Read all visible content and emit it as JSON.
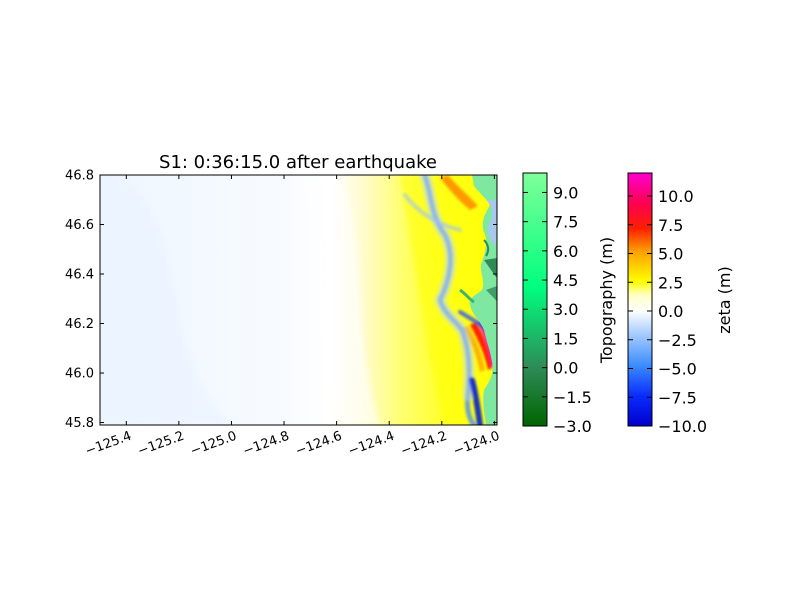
{
  "chart_data": {
    "type": "heatmap",
    "title": "S1: 0:36:15.0 after earthquake",
    "x_ticks": [
      "−125.4",
      "−125.2",
      "−125.0",
      "−124.8",
      "−124.6",
      "−124.4",
      "−124.2",
      "−124.0"
    ],
    "x_tick_values": [
      -125.4,
      -125.2,
      -125.0,
      -124.8,
      -124.6,
      -124.4,
      -124.2,
      -124.0
    ],
    "xlim": [
      -125.5,
      -123.99
    ],
    "y_ticks": [
      "45.8",
      "46.0",
      "46.2",
      "46.4",
      "46.6",
      "46.8"
    ],
    "y_tick_values": [
      45.8,
      46.0,
      46.2,
      46.4,
      46.6,
      46.8
    ],
    "ylim": [
      45.79,
      46.8
    ],
    "topo_colorbar": {
      "label": "Topography (m)",
      "ticks": [
        "−3.0",
        "−1.5",
        "0.0",
        "1.5",
        "3.0",
        "4.5",
        "6.0",
        "7.5",
        "9.0"
      ],
      "tick_values": [
        -3.0,
        -1.5,
        0.0,
        1.5,
        3.0,
        4.5,
        6.0,
        7.5,
        9.0
      ],
      "range": [
        -3.0,
        10.0
      ],
      "colors": [
        "#006400",
        "#3cb371",
        "#00ff7f",
        "#7fff9a"
      ]
    },
    "zeta_colorbar": {
      "label": "zeta (m)",
      "ticks": [
        "−10.0",
        "−7.5",
        "−5.0",
        "−2.5",
        "0.0",
        "2.5",
        "5.0",
        "7.5",
        "10.0"
      ],
      "tick_values": [
        -10.0,
        -7.5,
        -5.0,
        -2.5,
        0.0,
        2.5,
        5.0,
        7.5,
        10.0
      ],
      "range": [
        -10.0,
        12.0
      ],
      "colors": [
        "#0000cc",
        "#1e64ff",
        "#8cbcff",
        "#ffffff",
        "#ffff00",
        "#ffa000",
        "#ff0000",
        "#ff00c8"
      ]
    },
    "colors": {
      "deep_ocean": "#f0f7ff",
      "land": "#7fe8a0",
      "land_dark": "#2e8b57",
      "bay": "#a8c8ee"
    }
  }
}
